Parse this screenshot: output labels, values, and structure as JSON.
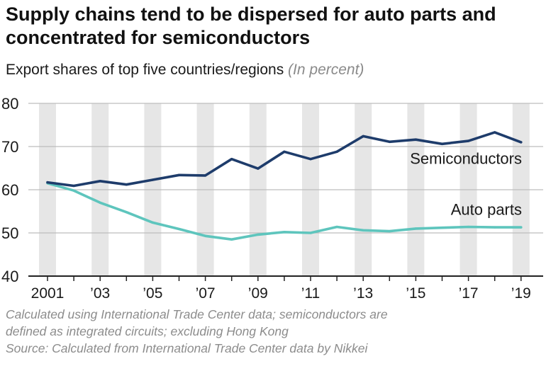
{
  "title": "Supply chains tend to be dispersed for auto parts and concentrated for semiconductors",
  "subtitle": "Export shares of top five countries/regions",
  "unit_note": "(In percent)",
  "notes": [
    "Calculated using International Trade Center data; semiconductors are",
    "defined as integrated circuits; excluding Hong Kong",
    "Source: Calculated from International Trade Center data by Nikkei"
  ],
  "colors": {
    "semiconductors": "#1e3c6b",
    "auto_parts": "#5ec5bd",
    "band": "#e6e6e6",
    "grid": "#bdbdbd",
    "axis": "#222222"
  },
  "chart_data": {
    "type": "line",
    "title": "Supply chains tend to be dispersed for auto parts and concentrated for semiconductors",
    "subtitle": "Export shares of top five countries/regions",
    "ylim": [
      40,
      80
    ],
    "yticks": [
      40,
      50,
      60,
      70,
      80
    ],
    "ytick_labels": [
      "40",
      "50",
      "60",
      "70",
      "80"
    ],
    "grid": true,
    "x": [
      2001,
      2002,
      2003,
      2004,
      2005,
      2006,
      2007,
      2008,
      2009,
      2010,
      2011,
      2012,
      2013,
      2014,
      2015,
      2016,
      2017,
      2018,
      2019
    ],
    "xtick_labels": [
      {
        "x": 2001,
        "label": "2001"
      },
      {
        "x": 2003,
        "label": "’03"
      },
      {
        "x": 2005,
        "label": "’05"
      },
      {
        "x": 2007,
        "label": "’07"
      },
      {
        "x": 2009,
        "label": "’09"
      },
      {
        "x": 2011,
        "label": "’11"
      },
      {
        "x": 2013,
        "label": "’13"
      },
      {
        "x": 2015,
        "label": "’15"
      },
      {
        "x": 2017,
        "label": "’17"
      },
      {
        "x": 2019,
        "label": "’19"
      }
    ],
    "series": [
      {
        "name": "Semiconductors",
        "color": "#1e3c6b",
        "values": [
          61.7,
          60.9,
          62.0,
          61.2,
          62.3,
          63.4,
          63.3,
          67.1,
          64.9,
          68.8,
          67.1,
          68.8,
          72.4,
          71.1,
          71.6,
          70.6,
          71.3,
          73.3,
          71.0
        ]
      },
      {
        "name": "Auto parts",
        "color": "#5ec5bd",
        "values": [
          61.5,
          59.8,
          57.0,
          54.8,
          52.4,
          50.9,
          49.3,
          48.5,
          49.6,
          50.2,
          50.0,
          51.4,
          50.6,
          50.4,
          51.0,
          51.2,
          51.4,
          51.3,
          51.3
        ]
      }
    ]
  }
}
